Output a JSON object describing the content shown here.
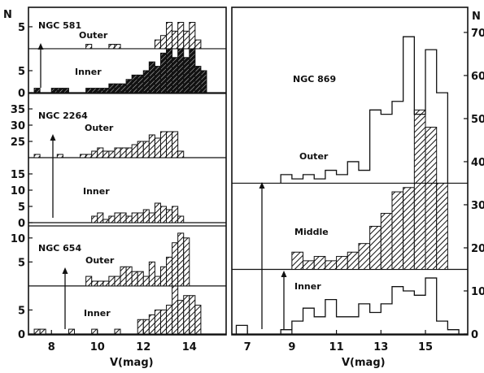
{
  "chart_data": [
    {
      "type": "histogram",
      "name_label": "NGC 581",
      "x_range": [
        7,
        15.6
      ],
      "y_range": [
        0,
        18.5
      ],
      "y_ticks": [
        0,
        5,
        10,
        15
      ],
      "bin_width": 0.25,
      "series": [
        {
          "name": "Inner",
          "baseline": 0,
          "fill": "dark",
          "bins": [
            [
              7.25,
              1
            ],
            [
              8.0,
              1
            ],
            [
              8.25,
              1
            ],
            [
              8.5,
              1
            ],
            [
              9.5,
              1
            ],
            [
              9.75,
              1
            ],
            [
              10.0,
              1
            ],
            [
              10.25,
              1
            ],
            [
              10.5,
              2
            ],
            [
              10.75,
              2
            ],
            [
              11.0,
              2
            ],
            [
              11.25,
              3
            ],
            [
              11.5,
              4
            ],
            [
              11.75,
              4
            ],
            [
              12.0,
              5
            ],
            [
              12.25,
              7
            ],
            [
              12.5,
              6
            ],
            [
              12.75,
              9
            ],
            [
              13.0,
              11
            ],
            [
              13.25,
              8
            ],
            [
              13.5,
              11
            ],
            [
              13.75,
              8
            ],
            [
              14.0,
              10
            ],
            [
              14.25,
              6
            ],
            [
              14.5,
              5
            ]
          ]
        },
        {
          "name": "Outer",
          "baseline": 10,
          "fill": "hatch",
          "bins": [
            [
              9.5,
              1
            ],
            [
              10.5,
              1
            ],
            [
              10.75,
              1
            ],
            [
              12.5,
              2
            ],
            [
              12.75,
              3
            ],
            [
              13.0,
              6
            ],
            [
              13.25,
              4
            ],
            [
              13.5,
              6
            ],
            [
              13.75,
              4
            ],
            [
              14.0,
              6
            ],
            [
              14.25,
              2
            ]
          ]
        }
      ]
    },
    {
      "type": "histogram",
      "name_label": "NGC 2264",
      "x_range": [
        7,
        15.6
      ],
      "y_range": [
        0,
        39
      ],
      "y_ticks": [
        0,
        5,
        10,
        15,
        20,
        25,
        30,
        35
      ],
      "bin_width": 0.25,
      "series": [
        {
          "name": "Inner",
          "baseline": 0,
          "fill": "hatch",
          "bins": [
            [
              9.75,
              2
            ],
            [
              10.0,
              3
            ],
            [
              10.25,
              1
            ],
            [
              10.5,
              2
            ],
            [
              10.75,
              3
            ],
            [
              11.0,
              3
            ],
            [
              11.25,
              2
            ],
            [
              11.5,
              3
            ],
            [
              11.75,
              3
            ],
            [
              12.0,
              4
            ],
            [
              12.25,
              3
            ],
            [
              12.5,
              6
            ],
            [
              12.75,
              5
            ],
            [
              13.0,
              4
            ],
            [
              13.25,
              5
            ],
            [
              13.5,
              2
            ]
          ]
        },
        {
          "name": "Outer",
          "baseline": 20,
          "fill": "hatch",
          "bins": [
            [
              7.25,
              1
            ],
            [
              8.25,
              1
            ],
            [
              9.25,
              1
            ],
            [
              9.5,
              1
            ],
            [
              9.75,
              2
            ],
            [
              10.0,
              3
            ],
            [
              10.25,
              2
            ],
            [
              10.5,
              2
            ],
            [
              10.75,
              3
            ],
            [
              11.0,
              3
            ],
            [
              11.25,
              3
            ],
            [
              11.5,
              4
            ],
            [
              11.75,
              5
            ],
            [
              12.0,
              5
            ],
            [
              12.25,
              7
            ],
            [
              12.5,
              6
            ],
            [
              12.75,
              8
            ],
            [
              13.0,
              8
            ],
            [
              13.25,
              8
            ],
            [
              13.5,
              2
            ]
          ]
        }
      ]
    },
    {
      "type": "histogram",
      "name_label": "NGC 654",
      "x_range": [
        7,
        15.6
      ],
      "y_range": [
        0,
        22
      ],
      "y_ticks": [
        0,
        5,
        10,
        15,
        20
      ],
      "bin_width": 0.25,
      "series": [
        {
          "name": "Inner",
          "baseline": 0,
          "fill": "hatch",
          "bins": [
            [
              7.25,
              1
            ],
            [
              7.5,
              1
            ],
            [
              8.75,
              1
            ],
            [
              9.75,
              1
            ],
            [
              10.75,
              1
            ],
            [
              11.75,
              3
            ],
            [
              12.0,
              3
            ],
            [
              12.25,
              4
            ],
            [
              12.5,
              5
            ],
            [
              12.75,
              5
            ],
            [
              13.0,
              6
            ],
            [
              13.25,
              10
            ],
            [
              13.5,
              7
            ],
            [
              13.75,
              8
            ],
            [
              14.0,
              8
            ],
            [
              14.25,
              6
            ]
          ]
        },
        {
          "name": "Outer",
          "baseline": 10,
          "fill": "hatch",
          "bins": [
            [
              9.5,
              2
            ],
            [
              9.75,
              1
            ],
            [
              10.0,
              1
            ],
            [
              10.25,
              1
            ],
            [
              10.5,
              2
            ],
            [
              10.75,
              2
            ],
            [
              11.0,
              4
            ],
            [
              11.25,
              4
            ],
            [
              11.5,
              3
            ],
            [
              11.75,
              3
            ],
            [
              12.0,
              2
            ],
            [
              12.25,
              5
            ],
            [
              12.5,
              2
            ],
            [
              12.75,
              4
            ],
            [
              13.0,
              6
            ],
            [
              13.25,
              9
            ],
            [
              13.5,
              11
            ],
            [
              13.75,
              10
            ]
          ]
        }
      ]
    },
    {
      "type": "histogram",
      "name_label": "NGC 869",
      "x_range": [
        6.3,
        16.9
      ],
      "y_range": [
        0,
        73
      ],
      "y_ticks": [
        0,
        10,
        20,
        30,
        40,
        50,
        60,
        70
      ],
      "bin_width": 0.5,
      "series": [
        {
          "name": "Inner",
          "baseline": 0,
          "fill": "none",
          "bins": [
            [
              6.5,
              2
            ],
            [
              8.5,
              1
            ],
            [
              9.0,
              3
            ],
            [
              9.5,
              6
            ],
            [
              10.0,
              4
            ],
            [
              10.5,
              8
            ],
            [
              11.0,
              4
            ],
            [
              11.5,
              4
            ],
            [
              12.0,
              7
            ],
            [
              12.5,
              5
            ],
            [
              13.0,
              7
            ],
            [
              13.5,
              11
            ],
            [
              14.0,
              10
            ],
            [
              14.5,
              9
            ],
            [
              15.0,
              13
            ],
            [
              15.5,
              3
            ],
            [
              16.0,
              1
            ]
          ]
        },
        {
          "name": "Middle",
          "baseline": 15,
          "fill": "hatch",
          "bins": [
            [
              9.0,
              4
            ],
            [
              9.5,
              2
            ],
            [
              10.0,
              3
            ],
            [
              10.5,
              2
            ],
            [
              11.0,
              3
            ],
            [
              11.5,
              4
            ],
            [
              12.0,
              6
            ],
            [
              12.5,
              10
            ],
            [
              13.0,
              13
            ],
            [
              13.5,
              18
            ],
            [
              14.0,
              19
            ],
            [
              14.5,
              37
            ],
            [
              15.0,
              33
            ],
            [
              15.5,
              20
            ]
          ]
        },
        {
          "name": "Outer",
          "baseline": 35,
          "fill": "none",
          "bins": [
            [
              8.5,
              2
            ],
            [
              9.0,
              1
            ],
            [
              9.5,
              2
            ],
            [
              10.0,
              1
            ],
            [
              10.5,
              3
            ],
            [
              11.0,
              2
            ],
            [
              11.5,
              5
            ],
            [
              12.0,
              3
            ],
            [
              12.5,
              17
            ],
            [
              13.0,
              16
            ],
            [
              13.5,
              19
            ],
            [
              14.0,
              34
            ],
            [
              14.5,
              16
            ],
            [
              15.0,
              31
            ],
            [
              15.5,
              21
            ]
          ]
        }
      ]
    }
  ],
  "x_axis": {
    "left_ticks": [
      "8",
      "10",
      "12",
      "14"
    ],
    "right_ticks": [
      "7",
      "9",
      "11",
      "13",
      "15"
    ],
    "left_label": "V(mag)",
    "right_label": "V(mag)"
  },
  "right_y_ticks": [
    "0",
    "10",
    "20",
    "30",
    "40",
    "50",
    "60",
    "70"
  ],
  "axis_letter_left": "N",
  "axis_letter_right": "N"
}
